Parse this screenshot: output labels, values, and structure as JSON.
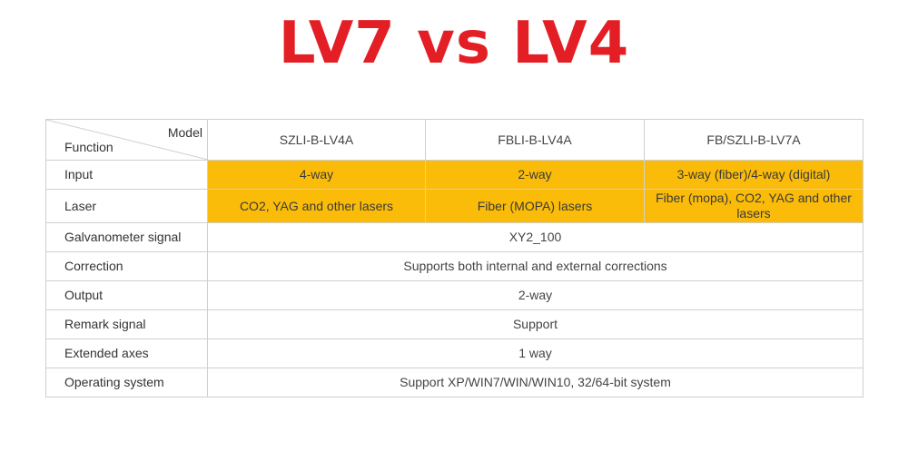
{
  "title": "LV7 vs LV4",
  "header": {
    "corner_model": "Model",
    "corner_function": "Function",
    "models": [
      "SZLI-B-LV4A",
      "FBLI-B-LV4A",
      "FB/SZLI-B-LV7A"
    ]
  },
  "rows": [
    {
      "function": "Input",
      "values": [
        "4-way",
        "2-way",
        "3-way (fiber)/4-way (digital)"
      ]
    },
    {
      "function": "Laser",
      "values": [
        "CO2, YAG and other lasers",
        "Fiber (MOPA) lasers",
        "Fiber (mopa), CO2, YAG and other lasers"
      ]
    },
    {
      "function": "Galvanometer signal",
      "value": "XY2_100"
    },
    {
      "function": "Correction",
      "value": "Supports both internal and external corrections"
    },
    {
      "function": "Output",
      "value": "2-way"
    },
    {
      "function": "Remark signal",
      "value": "Support"
    },
    {
      "function": "Extended axes",
      "value": "1 way"
    },
    {
      "function": "Operating system",
      "value": "Support XP/WIN7/WIN/WIN10, 32/64-bit system"
    }
  ],
  "colors": {
    "title": "#e31e24",
    "highlight": "#fbbc09",
    "border": "#cfcfcf"
  }
}
